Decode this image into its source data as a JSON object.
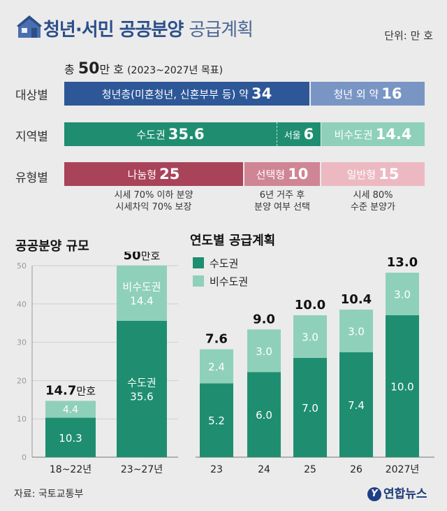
{
  "header": {
    "title_main": "청년·서민 공공분양",
    "title_sub": "공급계획",
    "unit": "단위: 만 호"
  },
  "total": {
    "prefix": "총",
    "value": "50",
    "suffix": "만 호",
    "period": "(2023~2027년 목표)"
  },
  "rows": {
    "target": {
      "label": "대상별",
      "segments": [
        {
          "text": "청년층(미혼청년, 신혼부부 등) 약",
          "value": "34",
          "color": "#2d5797"
        },
        {
          "text": "청년 외 약",
          "value": "16",
          "color": "#7995c4"
        }
      ]
    },
    "region": {
      "label": "지역별",
      "segments": [
        {
          "text": "수도권",
          "value": "35.6",
          "color": "#1f8e70"
        },
        {
          "text": "서울",
          "value": "6",
          "color": "#1f8e70"
        },
        {
          "text": "비수도권",
          "value": "14.4",
          "color": "#8fd0bb"
        }
      ]
    },
    "type": {
      "label": "유형별",
      "segments": [
        {
          "text": "나눔형",
          "value": "25",
          "color": "#a9435a",
          "note1": "시세 70% 이하 분양",
          "note2": "시세차익 70% 보장"
        },
        {
          "text": "선택형",
          "value": "10",
          "color": "#cf8594",
          "note1": "6년 거주 후",
          "note2": "분양 여부 선택"
        },
        {
          "text": "일반형",
          "value": "15",
          "color": "#ecb9c2",
          "note1": "시세 80%",
          "note2": "수준 분양가"
        }
      ]
    }
  },
  "chart_data": [
    {
      "type": "bar",
      "stacked": true,
      "title": "공공분양 규모",
      "categories": [
        "18~22년",
        "23~27년"
      ],
      "series": [
        {
          "name": "수도권",
          "values": [
            10.3,
            35.6
          ],
          "color": "#1f8e70"
        },
        {
          "name": "비수도권",
          "values": [
            4.4,
            14.4
          ],
          "color": "#8fd0bb"
        }
      ],
      "totals": [
        "14.7만호",
        "50만호"
      ],
      "ylim": [
        0,
        50
      ],
      "yticks": [
        0,
        10,
        20,
        30,
        40,
        50
      ],
      "grid": true
    },
    {
      "type": "bar",
      "stacked": true,
      "title": "연도별 공급계획",
      "categories": [
        "23",
        "24",
        "25",
        "26",
        "2027년"
      ],
      "series": [
        {
          "name": "수도권",
          "values": [
            5.2,
            6.0,
            7.0,
            7.4,
            10.0
          ],
          "color": "#1f8e70"
        },
        {
          "name": "비수도권",
          "values": [
            2.4,
            3.0,
            3.0,
            3.0,
            3.0
          ],
          "color": "#8fd0bb"
        }
      ],
      "totals": [
        "7.6",
        "9.0",
        "10.0",
        "10.4",
        "13.0"
      ],
      "ylim": [
        0,
        13
      ],
      "legend": "top-left"
    }
  ],
  "footer": {
    "source": "자료: 국토교통부",
    "logo": "연합뉴스",
    "logo_mark": "Y"
  }
}
